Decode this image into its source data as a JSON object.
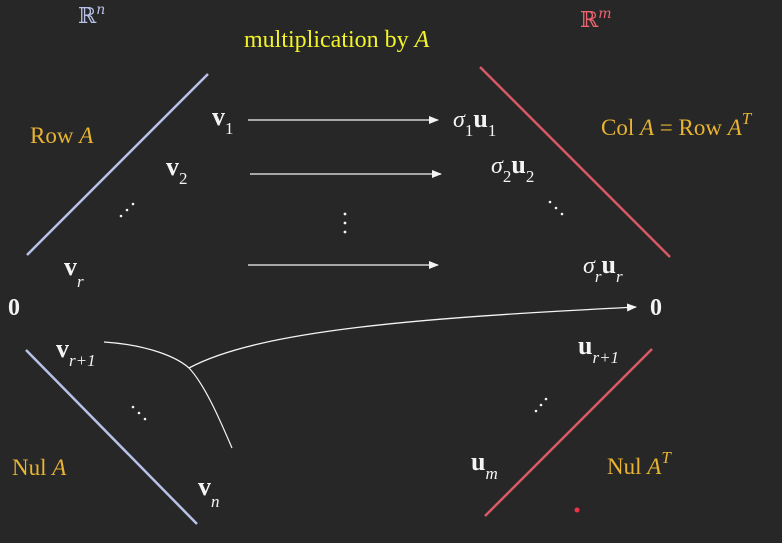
{
  "title": {
    "prefix": "multiplication by ",
    "var": "A"
  },
  "domain_space": {
    "symbol": "ℝ",
    "exp": "n",
    "color": "#b8c2e8"
  },
  "codomain_space": {
    "symbol": "ℝ",
    "exp": "m",
    "color": "#ee6470"
  },
  "subspaces": {
    "row": {
      "name": "Row ",
      "var": "A"
    },
    "nul": {
      "name": "Nul ",
      "var": "A"
    },
    "col": {
      "name": "Col ",
      "var": "A",
      "eq": " = Row ",
      "var2": "A",
      "sup": "T"
    },
    "nulT": {
      "name": "Nul ",
      "var": "A",
      "sup": "T"
    }
  },
  "left_vectors": [
    {
      "base": "v",
      "sub": "1"
    },
    {
      "base": "v",
      "sub": "2"
    },
    {
      "base": "v",
      "sub": "r"
    },
    {
      "base": "v",
      "sub": "r+1"
    },
    {
      "base": "v",
      "sub": "n"
    }
  ],
  "right_vectors": [
    {
      "sigma": "σ",
      "sigma_sub": "1",
      "base": "u",
      "sub": "1"
    },
    {
      "sigma": "σ",
      "sigma_sub": "2",
      "base": "u",
      "sub": "2"
    },
    {
      "sigma": "σ",
      "sigma_sub": "r",
      "base": "u",
      "sub": "r"
    },
    {
      "base": "u",
      "sub": "r+1"
    },
    {
      "base": "u",
      "sub": "m"
    }
  ],
  "zero_left": "0",
  "zero_right": "0",
  "colors": {
    "background": "#272727",
    "text": "#f4f4f4",
    "labels": "#e8b432",
    "title": "#f3f32a",
    "domain_line": "#b8c2e8",
    "codomain_line": "#d85a66",
    "arrows": "#f4f4f4"
  }
}
